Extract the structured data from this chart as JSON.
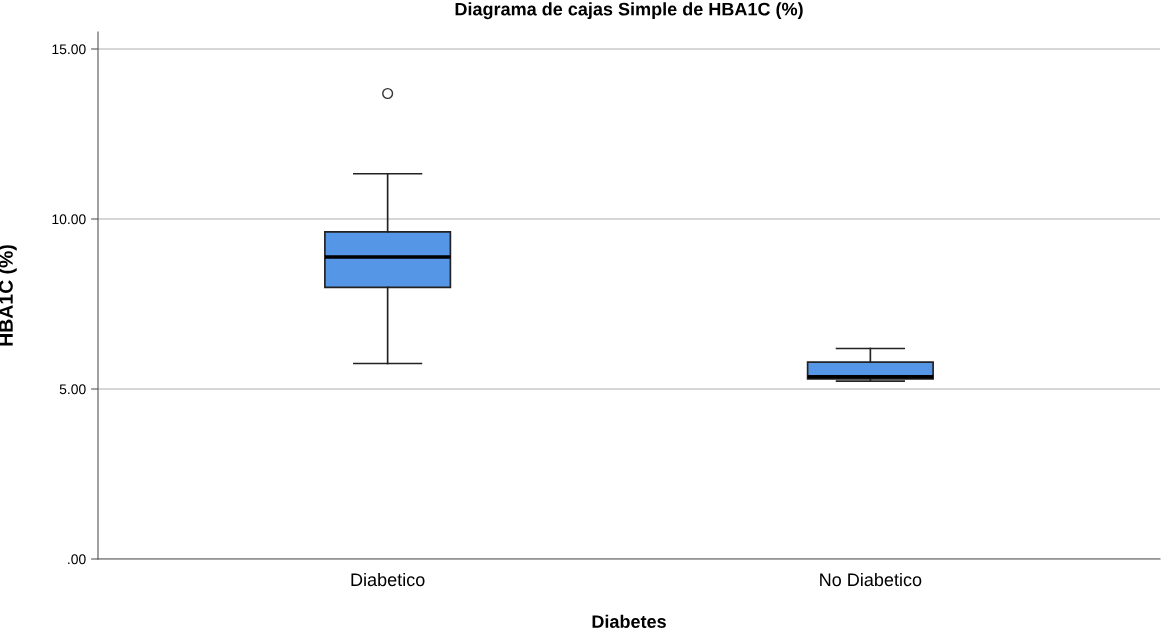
{
  "chart_data": {
    "type": "box",
    "title": "Diagrama de cajas Simple de HBA1C (%)",
    "xlabel": "Diabetes",
    "ylabel": "HBA1C (%)",
    "categories": [
      "Diabetico",
      "No Diabetico"
    ],
    "series": [
      {
        "color": "#5596e6",
        "boxes": [
          {
            "low": 5.75,
            "q1": 7.99,
            "median": 8.88,
            "q3": 9.62,
            "high": 11.33,
            "outliers": [
              13.69
            ]
          },
          {
            "low": 5.23,
            "q1": 5.3,
            "median": 5.36,
            "q3": 5.79,
            "high": 6.19
          }
        ]
      }
    ],
    "ylim": [
      0,
      15.5
    ],
    "yticks": [
      {
        "value": 0,
        "label": ".00"
      },
      {
        "value": 5,
        "label": "5.00"
      },
      {
        "value": 10,
        "label": "10.00"
      },
      {
        "value": 15,
        "label": "15.00"
      }
    ],
    "grid": "y",
    "legend": false
  }
}
